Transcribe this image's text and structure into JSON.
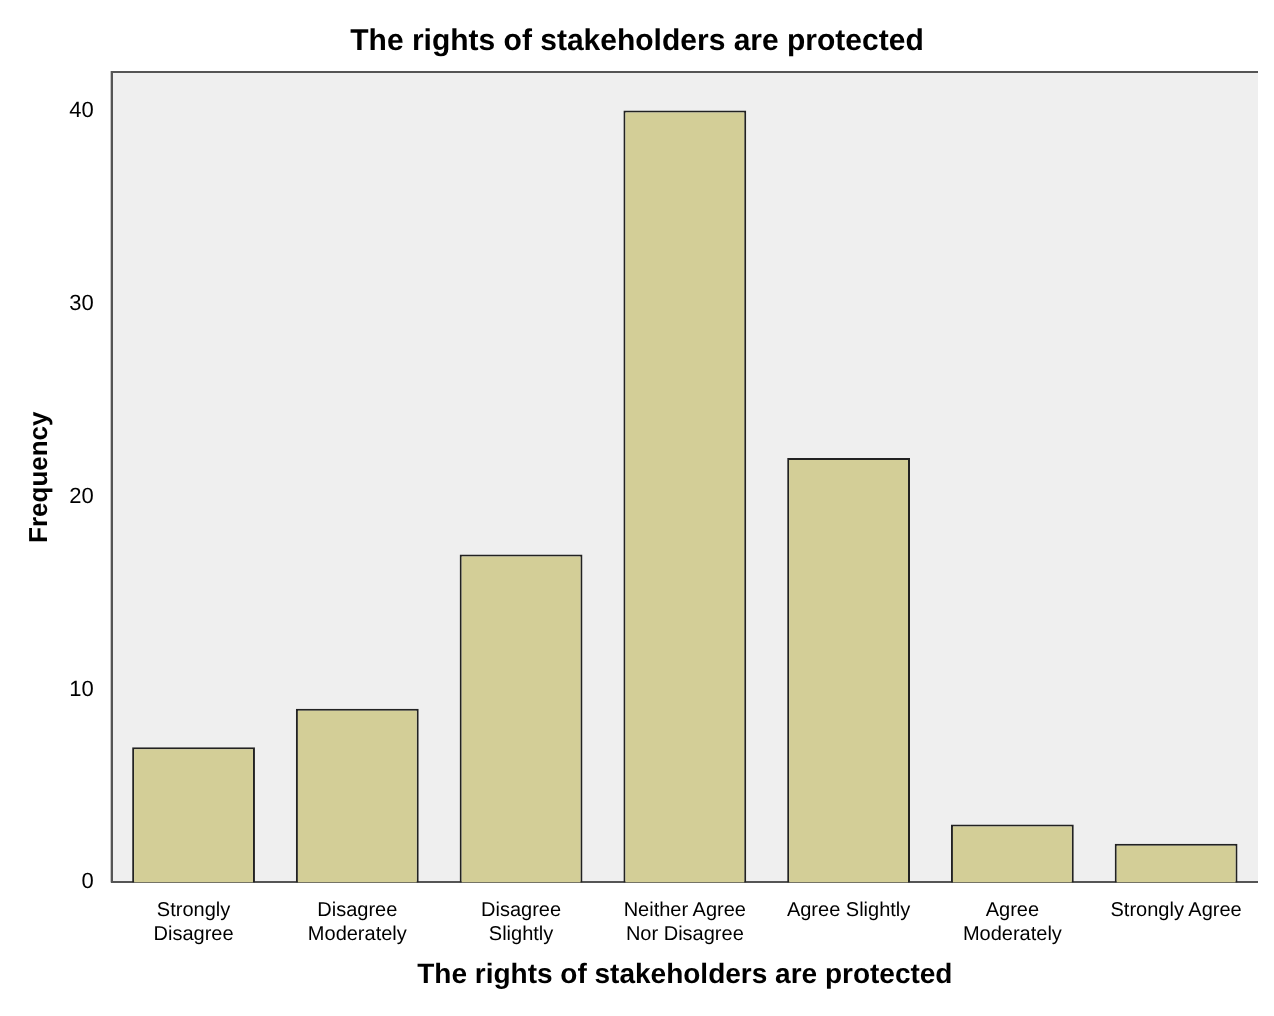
{
  "chart_data": {
    "type": "bar",
    "title": "The rights of stakeholders are protected",
    "xlabel": "The rights of stakeholders are protected",
    "ylabel": "Frequency",
    "categories": [
      "Strongly\nDisagree",
      "Disagree\nModerately",
      "Disagree\nSlightly",
      "Neither Agree\nNor Disagree",
      "Agree Slightly",
      "Agree\nModerately",
      "Strongly Agree"
    ],
    "values": [
      7,
      9,
      17,
      40,
      22,
      3,
      2
    ],
    "color": "#d3ce97",
    "ylim": [
      0,
      42
    ],
    "yticks": [
      0,
      10,
      20,
      30,
      40
    ],
    "grid": false,
    "legend": false
  }
}
